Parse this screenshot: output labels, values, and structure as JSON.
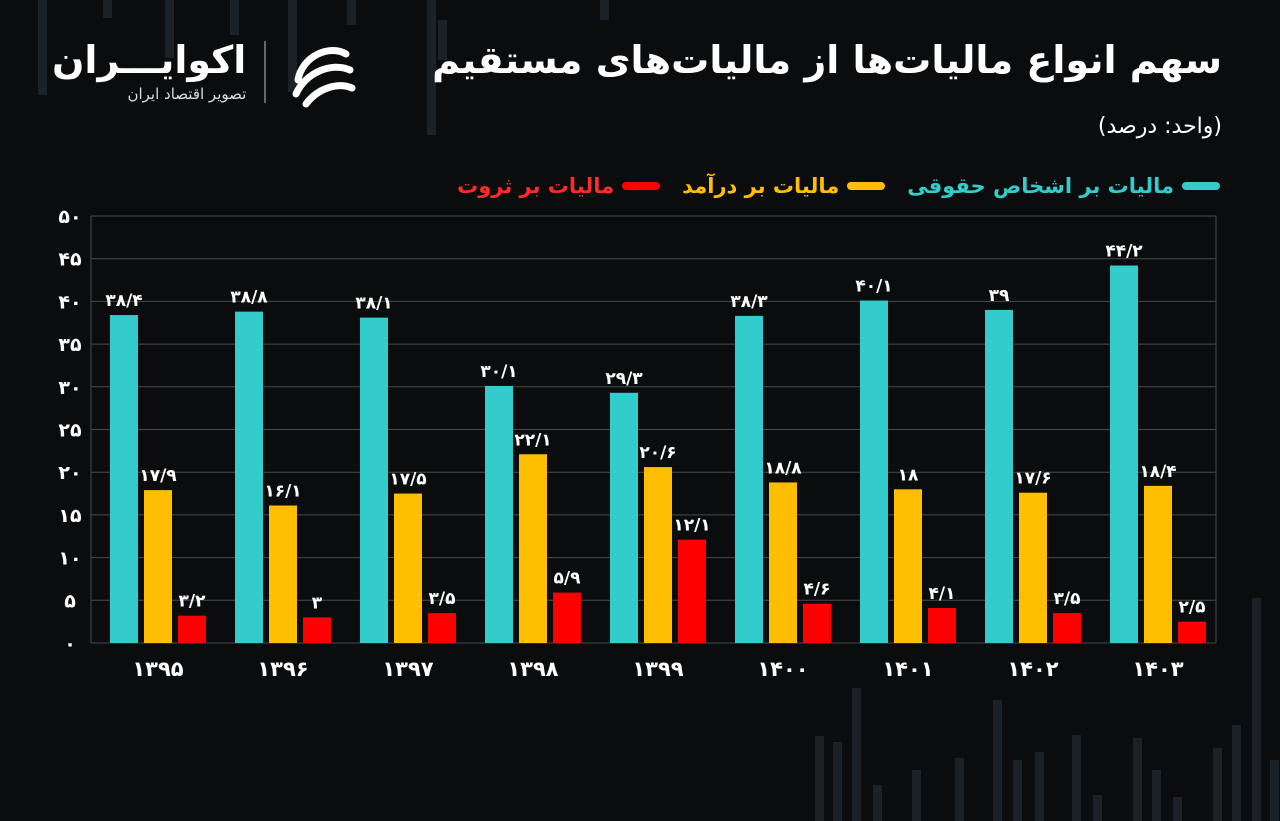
{
  "header": {
    "title": "سهم انواع مالیات‌ها از مالیات‌های مستقیم",
    "unit": "(واحد: درصد)"
  },
  "logo": {
    "name": "اکوایـــران",
    "tagline": "تصویر اقتصاد ایران",
    "icon": "ecoiran-swirl-icon"
  },
  "colors": {
    "background": "#0b0c0d",
    "corporate": "#33cccc",
    "income": "#ffbf00",
    "wealth": "#ff0000",
    "grid": "#5a5a5a"
  },
  "chart_data": {
    "type": "bar",
    "title": "سهم انواع مالیات‌ها از مالیات‌های مستقیم",
    "ylabel": "(واحد: درصد)",
    "xlabel": "",
    "ylim": [
      0,
      50
    ],
    "yticks": [
      0,
      5,
      10,
      15,
      20,
      25,
      30,
      35,
      40,
      45,
      50
    ],
    "ytick_labels": [
      "۰",
      "۵",
      "۱۰",
      "۱۵",
      "۲۰",
      "۲۵",
      "۳۰",
      "۳۵",
      "۴۰",
      "۴۵",
      "۵۰"
    ],
    "grid": true,
    "legend_position": "top-right",
    "categories": [
      "۱۳۹۵",
      "۱۳۹۶",
      "۱۳۹۷",
      "۱۳۹۸",
      "۱۳۹۹",
      "۱۴۰۰",
      "۱۴۰۱",
      "۱۴۰۲",
      "۱۴۰۳"
    ],
    "series": [
      {
        "name": "مالیات بر اشخاص حقوقی",
        "color": "#33cccc",
        "values": [
          38.4,
          38.8,
          38.1,
          30.1,
          29.3,
          38.3,
          40.1,
          39,
          44.2
        ],
        "labels": [
          "۳۸/۴",
          "۳۸/۸",
          "۳۸/۱",
          "۳۰/۱",
          "۲۹/۳",
          "۳۸/۳",
          "۴۰/۱",
          "۳۹",
          "۴۴/۲"
        ]
      },
      {
        "name": "مالیات بر درآمد",
        "color": "#ffbf00",
        "values": [
          17.9,
          16.1,
          17.5,
          22.1,
          20.6,
          18.8,
          18,
          17.6,
          18.4
        ],
        "labels": [
          "۱۷/۹",
          "۱۶/۱",
          "۱۷/۵",
          "۲۲/۱",
          "۲۰/۶",
          "۱۸/۸",
          "۱۸",
          "۱۷/۶",
          "۱۸/۴"
        ]
      },
      {
        "name": "مالیات بر ثروت",
        "color": "#ff0000",
        "values": [
          3.2,
          3,
          3.5,
          5.9,
          12.1,
          4.6,
          4.1,
          3.5,
          2.5
        ],
        "labels": [
          "۳/۲",
          "۳",
          "۳/۵",
          "۵/۹",
          "۱۲/۱",
          "۴/۶",
          "۴/۱",
          "۳/۵",
          "۲/۵"
        ]
      }
    ]
  }
}
